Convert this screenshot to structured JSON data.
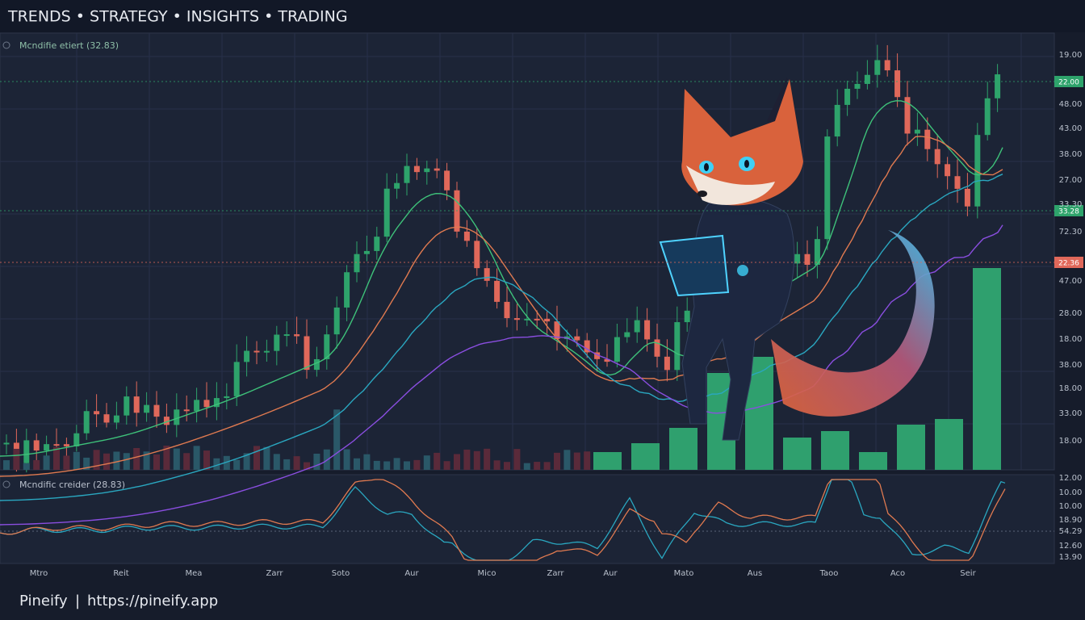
{
  "header": {
    "title": "TRENDS • STRATEGY • INSIGHTS • TRADING"
  },
  "main_panel": {
    "label": "Mcndifie etiert (32.83)",
    "price_axis": [
      "19.00",
      "48.00",
      "43.00",
      "38.00",
      "27.00",
      "33.30",
      "72.30",
      "47.00",
      "28.00",
      "18.00",
      "38.00",
      "18.00",
      "33.00",
      "18.00"
    ],
    "price_tags": [
      "22.00",
      "33.28",
      "22.36"
    ]
  },
  "oscillator": {
    "label": "Mcndific creider (28.83)",
    "axis": [
      "12.00",
      "10.00",
      "10.00",
      "18.90",
      "54.29",
      "12.60",
      "13.90"
    ]
  },
  "x_axis": [
    "Mtro",
    "Reit",
    "Mea",
    "Zarr",
    "Soto",
    "Aur",
    "Mico",
    "Zarr",
    "Aur",
    "Mato",
    "Aus",
    "Taoo",
    "Aco",
    "Seir"
  ],
  "footer": {
    "brand": "Pineify",
    "separator": "|",
    "url": "https://pineify.app"
  }
}
